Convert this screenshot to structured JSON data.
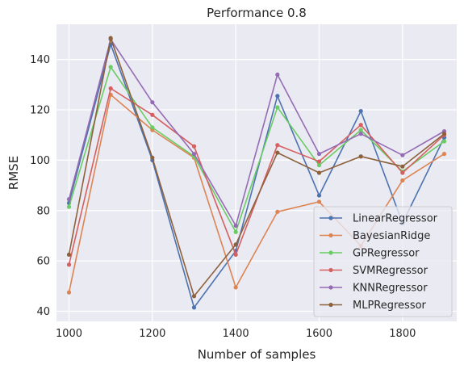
{
  "chart_data": {
    "type": "line",
    "title": "Performance 0.8",
    "xlabel": "Number of samples",
    "ylabel": "RMSE",
    "x": [
      1000,
      1100,
      1200,
      1300,
      1400,
      1500,
      1600,
      1700,
      1800,
      1900
    ],
    "xlim": [
      970,
      1930
    ],
    "ylim": [
      36,
      154
    ],
    "xticks": [
      1000,
      1200,
      1400,
      1600,
      1800
    ],
    "yticks": [
      40,
      60,
      80,
      100,
      120,
      140
    ],
    "grid": true,
    "legend_position": "lower-right",
    "series": [
      {
        "name": "LinearRegressor",
        "color": "#4c72b0",
        "values": [
          83,
          146,
          100,
          41.5,
          64,
          125.5,
          86,
          119.5,
          75,
          109
        ]
      },
      {
        "name": "BayesianRidge",
        "color": "#dd8452",
        "values": [
          47.5,
          126,
          112,
          101,
          49.5,
          79.5,
          83.5,
          66,
          92,
          102.5
        ]
      },
      {
        "name": "GPRegressor",
        "color": "#6acc64",
        "values": [
          81.5,
          137,
          113,
          101.5,
          71.5,
          121,
          98,
          112,
          95.5,
          107.5
        ]
      },
      {
        "name": "SVMRegressor",
        "color": "#d65f5f",
        "values": [
          58.5,
          128.5,
          118,
          105.5,
          62.5,
          106,
          99.5,
          114,
          95,
          110
        ]
      },
      {
        "name": "KNNRegressor",
        "color": "#956cb4",
        "values": [
          84.5,
          148,
          123,
          102.5,
          74,
          134,
          102.5,
          110.5,
          102,
          111.5
        ]
      },
      {
        "name": "MLPRegressor",
        "color": "#8c613c",
        "values": [
          62.5,
          148.5,
          101,
          46,
          66.5,
          103,
          95,
          101.5,
          97.5,
          110.5
        ]
      }
    ]
  }
}
